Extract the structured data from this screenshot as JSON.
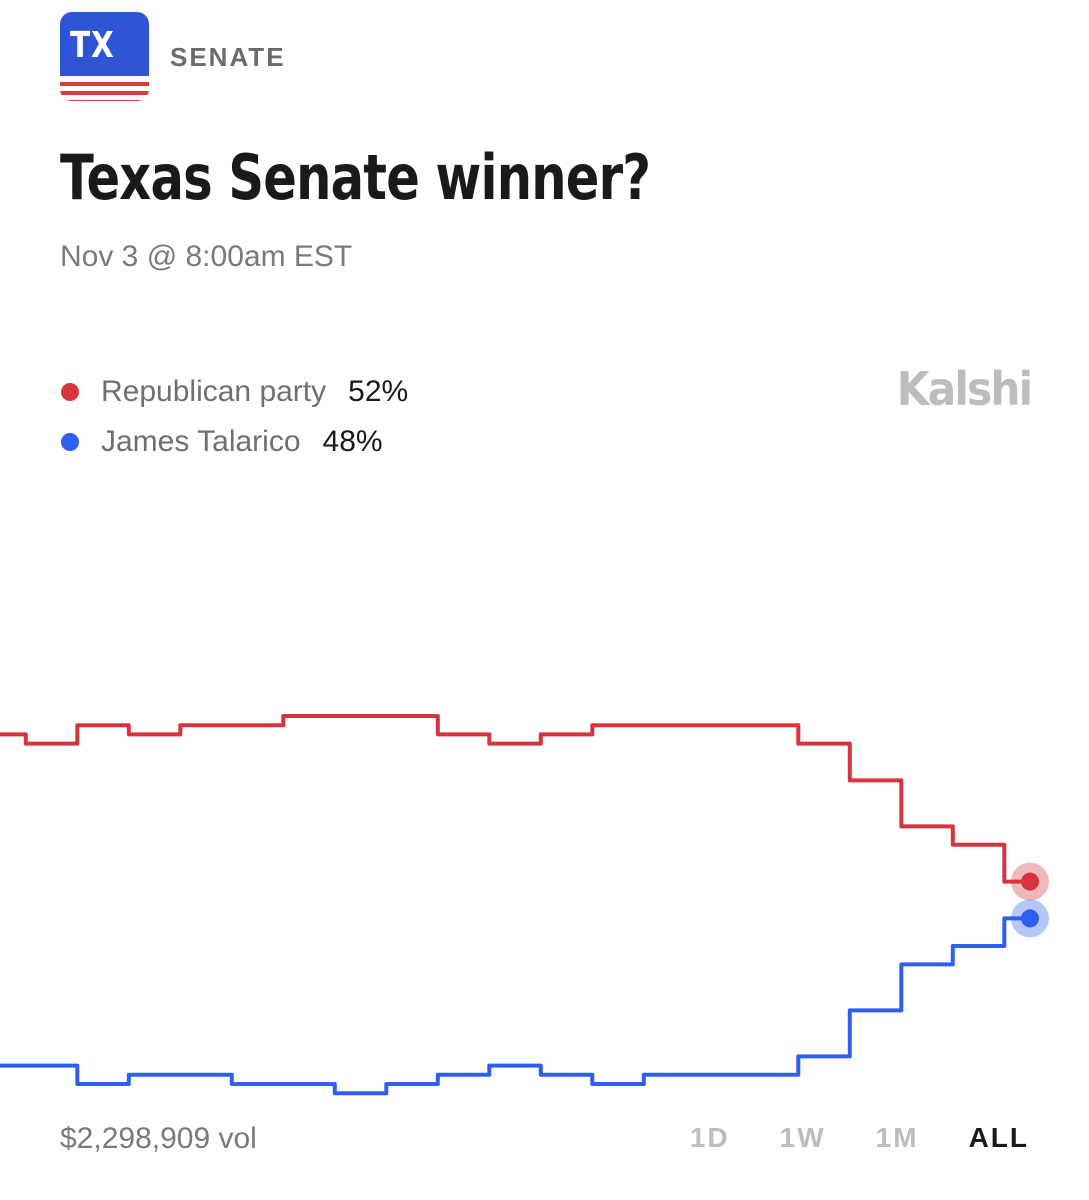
{
  "header": {
    "badge_text": "TX",
    "category": "SENATE",
    "title": "Texas Senate winner?",
    "subtitle": "Nov 3 @ 8:00am EST",
    "brand": "Kalshi"
  },
  "legend": [
    {
      "name": "Republican party",
      "value": "52%",
      "color": "#d8343f"
    },
    {
      "name": "James Talarico",
      "value": "48%",
      "color": "#2f5ff0"
    }
  ],
  "footer": {
    "volume": "$2,298,909 vol",
    "ranges": [
      "1D",
      "1W",
      "1M",
      "ALL"
    ],
    "active_range": "ALL"
  },
  "colors": {
    "republican": "#d8343f",
    "democrat": "#2f5ff0",
    "badge_blue": "#2f55d4",
    "badge_red": "#d93a3a"
  },
  "icons": {
    "badge": "texas-flag-badge"
  },
  "chart_data": {
    "type": "line",
    "title": "",
    "xlabel": "",
    "ylabel": "",
    "ylim": [
      0,
      100
    ],
    "grid": false,
    "x": [
      0,
      5,
      10,
      15,
      20,
      25,
      30,
      35,
      40,
      45,
      50,
      55,
      60,
      65,
      70,
      75,
      80,
      85,
      90,
      95,
      100
    ],
    "series": [
      {
        "name": "Republican party",
        "color": "#d8343f",
        "values": [
          68,
          67,
          69,
          68,
          69,
          69,
          70,
          70,
          70,
          68,
          67,
          68,
          69,
          69,
          69,
          69,
          67,
          63,
          58,
          56,
          52
        ]
      },
      {
        "name": "James Talarico",
        "color": "#2f5ff0",
        "values": [
          32,
          32,
          30,
          31,
          31,
          30,
          30,
          29,
          30,
          31,
          32,
          31,
          30,
          31,
          31,
          31,
          33,
          38,
          43,
          45,
          48
        ]
      }
    ]
  }
}
